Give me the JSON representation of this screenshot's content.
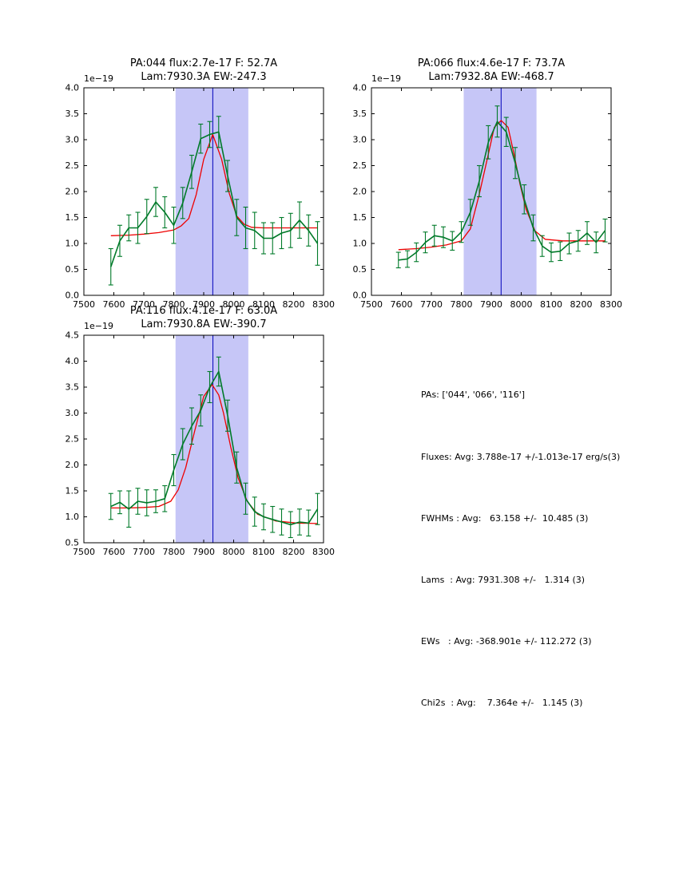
{
  "figure": {
    "background": "#ffffff"
  },
  "stats_panel": {
    "lines": [
      "PAs: ['044', '066', '116']",
      "Fluxes: Avg: 3.788e-17 +/-1.013e-17 erg/s(3)",
      "FWHMs : Avg:   63.158 +/-  10.485 (3)",
      "Lams  : Avg: 7931.308 +/-   1.314 (3)",
      "EWs   : Avg: -368.901e +/- 112.272 (3)",
      "Chi2s  : Avg:    7.364e +/-   1.145 (3)"
    ]
  },
  "chart_data": [
    {
      "id": "pa044",
      "type": "line",
      "title": "PA:044 flux:2.7e-17 F: 52.7A",
      "subtitle": "Lam:7930.3A EW:-247.3",
      "y_offset_label": "1e−19",
      "xlabel": "",
      "ylabel": "",
      "xlim": [
        7500,
        8300
      ],
      "ylim": [
        0.0,
        4.0
      ],
      "xticks": [
        7500,
        7600,
        7700,
        7800,
        7900,
        8000,
        8100,
        8200,
        8300
      ],
      "yticks": [
        0.0,
        0.5,
        1.0,
        1.5,
        2.0,
        2.5,
        3.0,
        3.5,
        4.0
      ],
      "ytick_decimals": 1,
      "band": {
        "x0": 7806,
        "x1": 8049,
        "color": "#c6c6f7"
      },
      "vline": {
        "x": 7930.3,
        "color": "#0000bb"
      },
      "series": [
        {
          "name": "gaussian-fit",
          "color": "#ee0000",
          "width": 1.3,
          "x": [
            7590,
            7650,
            7700,
            7750,
            7800,
            7825,
            7850,
            7875,
            7900,
            7930,
            7960,
            7985,
            8010,
            8035,
            8060,
            8100,
            8160,
            8220,
            8280
          ],
          "y": [
            1.15,
            1.16,
            1.18,
            1.21,
            1.26,
            1.34,
            1.48,
            1.94,
            2.62,
            3.1,
            2.62,
            1.97,
            1.53,
            1.37,
            1.31,
            1.3,
            1.3,
            1.3,
            1.3
          ]
        },
        {
          "name": "spectrum-data",
          "color": "#007a29",
          "width": 1.6,
          "x": [
            7590,
            7620,
            7650,
            7680,
            7710,
            7740,
            7770,
            7800,
            7830,
            7860,
            7890,
            7920,
            7950,
            7980,
            8010,
            8040,
            8070,
            8100,
            8130,
            8160,
            8190,
            8220,
            8250,
            8280
          ],
          "y": [
            0.55,
            1.05,
            1.3,
            1.3,
            1.52,
            1.8,
            1.6,
            1.35,
            1.78,
            2.38,
            3.02,
            3.1,
            3.15,
            2.3,
            1.5,
            1.3,
            1.25,
            1.1,
            1.1,
            1.2,
            1.25,
            1.45,
            1.25,
            1.0
          ],
          "yerr": [
            0.35,
            0.3,
            0.25,
            0.3,
            0.33,
            0.28,
            0.3,
            0.35,
            0.3,
            0.32,
            0.28,
            0.25,
            0.3,
            0.3,
            0.35,
            0.4,
            0.35,
            0.3,
            0.3,
            0.3,
            0.33,
            0.35,
            0.3,
            0.42
          ]
        }
      ]
    },
    {
      "id": "pa066",
      "type": "line",
      "title": "PA:066 flux:4.6e-17 F: 73.7A",
      "subtitle": "Lam:7932.8A EW:-468.7",
      "y_offset_label": "1e−19",
      "xlabel": "",
      "ylabel": "",
      "xlim": [
        7500,
        8300
      ],
      "ylim": [
        0.0,
        4.0
      ],
      "xticks": [
        7500,
        7600,
        7700,
        7800,
        7900,
        8000,
        8100,
        8200,
        8300
      ],
      "yticks": [
        0.0,
        0.5,
        1.0,
        1.5,
        2.0,
        2.5,
        3.0,
        3.5,
        4.0
      ],
      "ytick_decimals": 1,
      "band": {
        "x0": 7808,
        "x1": 8051,
        "color": "#c6c6f7"
      },
      "vline": {
        "x": 7932.8,
        "color": "#0000bb"
      },
      "series": [
        {
          "name": "gaussian-fit",
          "color": "#ee0000",
          "width": 1.3,
          "x": [
            7590,
            7650,
            7700,
            7750,
            7800,
            7830,
            7860,
            7890,
            7910,
            7933,
            7956,
            7976,
            7996,
            8016,
            8046,
            8080,
            8140,
            8210,
            8280
          ],
          "y": [
            0.88,
            0.9,
            0.93,
            0.97,
            1.05,
            1.28,
            1.95,
            2.72,
            3.24,
            3.37,
            3.24,
            2.72,
            2.14,
            1.66,
            1.24,
            1.08,
            1.05,
            1.05,
            1.05
          ]
        },
        {
          "name": "spectrum-data",
          "color": "#007a29",
          "width": 1.6,
          "x": [
            7590,
            7620,
            7650,
            7680,
            7710,
            7740,
            7770,
            7800,
            7830,
            7860,
            7890,
            7920,
            7950,
            7980,
            8010,
            8040,
            8070,
            8100,
            8130,
            8160,
            8190,
            8220,
            8250,
            8280
          ],
          "y": [
            0.68,
            0.7,
            0.83,
            1.02,
            1.15,
            1.12,
            1.05,
            1.22,
            1.6,
            2.2,
            2.95,
            3.35,
            3.15,
            2.55,
            1.85,
            1.3,
            0.95,
            0.83,
            0.85,
            1.0,
            1.05,
            1.2,
            1.02,
            1.25
          ],
          "yerr": [
            0.15,
            0.16,
            0.18,
            0.2,
            0.2,
            0.2,
            0.18,
            0.2,
            0.25,
            0.3,
            0.32,
            0.3,
            0.28,
            0.3,
            0.28,
            0.25,
            0.2,
            0.18,
            0.18,
            0.2,
            0.2,
            0.22,
            0.2,
            0.22
          ]
        }
      ]
    },
    {
      "id": "pa116",
      "type": "line",
      "title": "PA:116 flux:4.1e-17 F: 63.0A",
      "subtitle": "Lam:7930.8A EW:-390.7",
      "y_offset_label": "1e−19",
      "xlabel": "",
      "ylabel": "",
      "xlim": [
        7500,
        8300
      ],
      "ylim": [
        0.5,
        4.5
      ],
      "xticks": [
        7500,
        7600,
        7700,
        7800,
        7900,
        8000,
        8100,
        8200,
        8300
      ],
      "yticks": [
        0.5,
        1.0,
        1.5,
        2.0,
        2.5,
        3.0,
        3.5,
        4.0,
        4.5
      ],
      "ytick_decimals": 1,
      "band": {
        "x0": 7806,
        "x1": 8049,
        "color": "#c6c6f7"
      },
      "vline": {
        "x": 7930.8,
        "color": "#0000bb"
      },
      "series": [
        {
          "name": "gaussian-fit",
          "color": "#ee0000",
          "width": 1.3,
          "x": [
            7590,
            7650,
            7700,
            7750,
            7790,
            7815,
            7840,
            7870,
            7900,
            7928,
            7950,
            7966,
            7990,
            8015,
            8045,
            8080,
            8140,
            8210,
            8280
          ],
          "y": [
            1.17,
            1.17,
            1.18,
            1.2,
            1.3,
            1.52,
            1.95,
            2.66,
            3.32,
            3.55,
            3.35,
            3.0,
            2.35,
            1.75,
            1.3,
            1.05,
            0.92,
            0.88,
            0.87
          ]
        },
        {
          "name": "spectrum-data",
          "color": "#007a29",
          "width": 1.6,
          "x": [
            7590,
            7620,
            7650,
            7680,
            7710,
            7740,
            7770,
            7800,
            7830,
            7860,
            7890,
            7920,
            7950,
            7980,
            8010,
            8040,
            8070,
            8100,
            8130,
            8160,
            8190,
            8220,
            8250,
            8280
          ],
          "y": [
            1.2,
            1.28,
            1.15,
            1.3,
            1.27,
            1.3,
            1.35,
            1.9,
            2.4,
            2.75,
            3.05,
            3.5,
            3.8,
            2.95,
            1.95,
            1.35,
            1.1,
            1.0,
            0.95,
            0.9,
            0.85,
            0.9,
            0.88,
            1.15
          ],
          "yerr": [
            0.25,
            0.22,
            0.35,
            0.25,
            0.25,
            0.22,
            0.25,
            0.3,
            0.3,
            0.35,
            0.3,
            0.3,
            0.28,
            0.3,
            0.3,
            0.3,
            0.28,
            0.25,
            0.25,
            0.25,
            0.25,
            0.25,
            0.25,
            0.3
          ]
        }
      ]
    }
  ]
}
